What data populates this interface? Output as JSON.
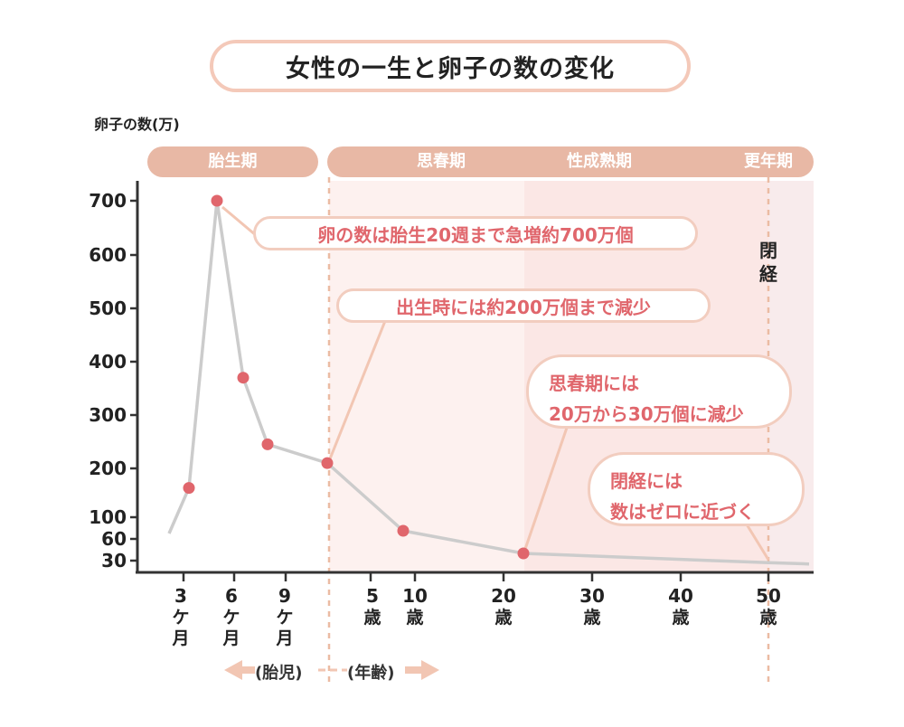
{
  "title": "女性の一生と卵子の数の変化",
  "y_unit_label": "卵子の数(万)",
  "colors": {
    "band_header": "#e8b8a5",
    "shade_light": "#fdf1ef",
    "shade_mid": "#fbe7e5",
    "shade_right": "#f8ebec",
    "line": "#cccccc",
    "point": "#e0666c",
    "dashed": "#ebbba3",
    "callout_border": "#f2cdbf",
    "callout_text": "#e0666c",
    "arrow": "#f2c6b3"
  },
  "bands": [
    {
      "label": "胎生期"
    },
    {
      "label": "思春期"
    },
    {
      "label": "性成熟期"
    },
    {
      "label": "更年期"
    }
  ],
  "menopause_label": "閉経",
  "axis_notes": {
    "fetal": "(胎児)",
    "age": "(年齢)"
  },
  "callouts": [
    {
      "lines": [
        "卵の数は胎生20週まで急増約700万個"
      ]
    },
    {
      "lines": [
        "出生時には約200万個まで減少"
      ]
    },
    {
      "lines": [
        "思春期には",
        "20万から30万個に減少"
      ]
    },
    {
      "lines": [
        "閉経には",
        "数はゼロに近づく"
      ]
    }
  ],
  "x_ticks": [
    {
      "num": "3",
      "unit": [
        "ケ",
        "月"
      ]
    },
    {
      "num": "6",
      "unit": [
        "ケ",
        "月"
      ]
    },
    {
      "num": "9",
      "unit": [
        "ケ",
        "月"
      ]
    },
    {
      "num": "5",
      "unit": [
        "歳"
      ]
    },
    {
      "num": "10",
      "unit": [
        "歳"
      ]
    },
    {
      "num": "20",
      "unit": [
        "歳"
      ]
    },
    {
      "num": "30",
      "unit": [
        "歳"
      ]
    },
    {
      "num": "40",
      "unit": [
        "歳"
      ]
    },
    {
      "num": "50",
      "unit": [
        "歳"
      ]
    }
  ],
  "chart_data": {
    "type": "line",
    "title": "女性の一生と卵子の数の変化",
    "ylabel": "卵子の数(万)",
    "xlabel": "",
    "y_ticks": [
      30,
      60,
      100,
      200,
      300,
      400,
      500,
      600,
      700
    ],
    "ylim": [
      0,
      750
    ],
    "x_segments": [
      "胎児(月)",
      "年齢(歳)"
    ],
    "series": [
      {
        "name": "卵子の数",
        "points": [
          {
            "x": "2ケ月",
            "y": 70,
            "marker": false
          },
          {
            "x": "3ケ月",
            "y": 160,
            "marker": true
          },
          {
            "x": "5ケ月",
            "y": 700,
            "marker": true
          },
          {
            "x": "6ケ月",
            "y": 370,
            "marker": true
          },
          {
            "x": "7ケ月",
            "y": 245,
            "marker": true
          },
          {
            "x": "出生",
            "y": 210,
            "marker": true
          },
          {
            "x": "9歳",
            "y": 75,
            "marker": true
          },
          {
            "x": "22歳",
            "y": 40,
            "marker": true
          },
          {
            "x": "50歳",
            "y": 25,
            "marker": false
          },
          {
            "x": "55歳",
            "y": 22,
            "marker": false
          }
        ]
      }
    ]
  }
}
